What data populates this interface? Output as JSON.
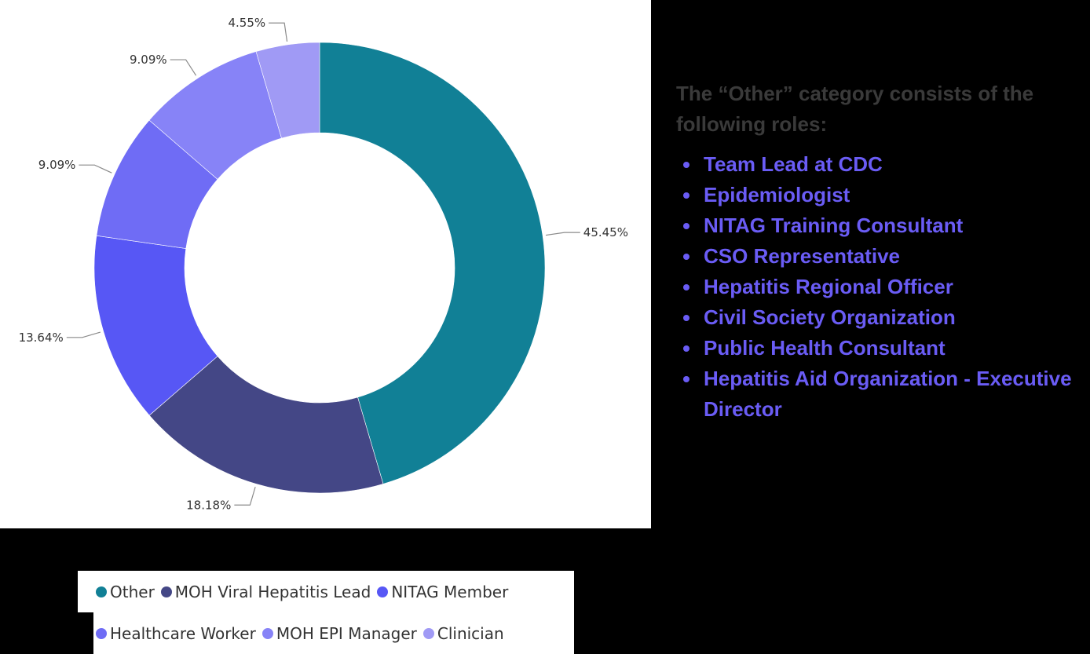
{
  "chart_data": {
    "type": "pie",
    "variant": "donut",
    "title": "",
    "categories": [
      "Other",
      "MOH Viral Hepatitis Lead",
      "NITAG Member",
      "Healthcare Worker",
      "MOH EPI Manager",
      "Clinician"
    ],
    "values": [
      45.45,
      18.18,
      13.64,
      9.09,
      9.09,
      4.55
    ],
    "labels": [
      "45.45%",
      "18.18%",
      "13.64%",
      "9.09%",
      "9.09%",
      "4.55%"
    ],
    "colors": [
      "#118096",
      "#444786",
      "#5757f5",
      "#6f6cf5",
      "#8783f7",
      "#a09af5"
    ],
    "legend_position": "bottom",
    "start_angle_deg": 0,
    "direction": "clockwise"
  },
  "legend": {
    "row1": [
      {
        "label": "Other",
        "color": "#118096"
      },
      {
        "label": "MOH Viral Hepatitis Lead",
        "color": "#444786"
      },
      {
        "label": "NITAG Member",
        "color": "#5757f5"
      }
    ],
    "row2": [
      {
        "label": "Healthcare Worker",
        "color": "#6f6cf5"
      },
      {
        "label": "MOH EPI Manager",
        "color": "#8783f7"
      },
      {
        "label": "Clinician",
        "color": "#a09af5"
      }
    ]
  },
  "note": {
    "heading": "The “Other” category consists of the following roles:",
    "roles": [
      "Team Lead at CDC",
      "Epidemiologist",
      "NITAG Training Consultant",
      "CSO Representative",
      "Hepatitis Regional Officer",
      "Civil Society Organization",
      "Public Health Consultant",
      "Hepatitis Aid Organization - Executive Director"
    ],
    "heading_color": "#3a3a3a",
    "accent_color": "#6a5cf5"
  }
}
